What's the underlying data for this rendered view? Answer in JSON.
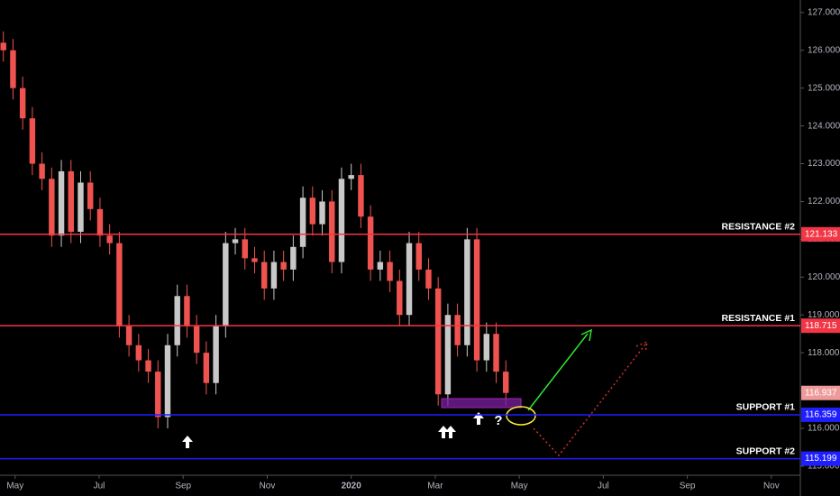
{
  "chart_data": {
    "type": "candlestick",
    "x": [
      -0.28,
      -0.05,
      0.18,
      0.41,
      0.64,
      0.87,
      1.1,
      1.33,
      1.56,
      1.79,
      2.02,
      2.25,
      2.48,
      2.71,
      2.94,
      3.17,
      3.4,
      3.63,
      3.86,
      4.09,
      4.32,
      4.55,
      4.78,
      5.01,
      5.24,
      5.47,
      5.7,
      5.93,
      6.16,
      6.39,
      6.62,
      6.85,
      7.08,
      7.31,
      7.54,
      7.77,
      8.0,
      8.23,
      8.46,
      8.69,
      8.92,
      9.15,
      9.38,
      9.61,
      9.84,
      10.07,
      10.3,
      10.53,
      10.76,
      10.99,
      11.22,
      11.45,
      11.68
    ],
    "candles": [
      [
        126.2,
        126.5,
        125.7,
        126.0
      ],
      [
        126.0,
        126.3,
        124.7,
        125.0
      ],
      [
        125.0,
        125.3,
        123.9,
        124.2
      ],
      [
        124.2,
        124.5,
        122.7,
        123.0
      ],
      [
        123.0,
        123.3,
        122.3,
        122.6
      ],
      [
        122.6,
        122.9,
        120.8,
        121.1
      ],
      [
        121.1,
        123.1,
        120.8,
        122.8
      ],
      [
        122.8,
        123.1,
        120.9,
        121.2
      ],
      [
        121.2,
        122.8,
        120.9,
        122.5
      ],
      [
        122.5,
        122.8,
        121.5,
        121.8
      ],
      [
        121.8,
        122.1,
        120.8,
        121.1
      ],
      [
        121.1,
        121.4,
        120.6,
        120.9
      ],
      [
        120.9,
        121.2,
        118.4,
        118.7
      ],
      [
        118.7,
        119.0,
        117.9,
        118.2
      ],
      [
        118.2,
        118.5,
        117.5,
        117.8
      ],
      [
        117.8,
        118.1,
        117.2,
        117.5
      ],
      [
        117.5,
        117.8,
        116.0,
        116.3
      ],
      [
        116.3,
        118.5,
        116.0,
        118.2
      ],
      [
        118.2,
        119.8,
        117.9,
        119.5
      ],
      [
        119.5,
        119.8,
        118.4,
        118.7
      ],
      [
        118.7,
        119.0,
        117.7,
        118.0
      ],
      [
        118.0,
        118.3,
        116.9,
        117.2
      ],
      [
        117.2,
        119.0,
        116.9,
        118.7
      ],
      [
        118.7,
        121.2,
        118.4,
        120.9
      ],
      [
        120.9,
        121.3,
        120.6,
        121.0
      ],
      [
        121.0,
        121.3,
        120.2,
        120.5
      ],
      [
        120.5,
        120.8,
        120.1,
        120.4
      ],
      [
        120.4,
        120.7,
        119.4,
        119.7
      ],
      [
        119.7,
        120.7,
        119.4,
        120.4
      ],
      [
        120.4,
        120.7,
        119.9,
        120.2
      ],
      [
        120.2,
        121.1,
        119.9,
        120.8
      ],
      [
        120.8,
        122.4,
        120.5,
        122.1
      ],
      [
        122.1,
        122.4,
        121.1,
        121.4
      ],
      [
        121.4,
        122.3,
        121.1,
        122.0
      ],
      [
        122.0,
        122.3,
        120.1,
        120.4
      ],
      [
        120.4,
        122.9,
        120.1,
        122.6
      ],
      [
        122.6,
        123.0,
        122.3,
        122.7
      ],
      [
        122.7,
        123.0,
        121.3,
        121.6
      ],
      [
        121.6,
        121.9,
        119.9,
        120.2
      ],
      [
        120.2,
        120.7,
        119.9,
        120.4
      ],
      [
        120.4,
        120.7,
        119.6,
        119.9
      ],
      [
        119.9,
        120.2,
        118.7,
        119.0
      ],
      [
        119.0,
        121.2,
        118.7,
        120.9
      ],
      [
        120.9,
        121.2,
        119.9,
        120.2
      ],
      [
        120.2,
        120.5,
        119.4,
        119.7
      ],
      [
        119.7,
        120.0,
        116.6,
        116.9
      ],
      [
        116.9,
        119.3,
        116.6,
        119.0
      ],
      [
        119.0,
        119.3,
        117.9,
        118.2
      ],
      [
        118.2,
        121.3,
        117.9,
        121.0
      ],
      [
        121.0,
        121.3,
        117.5,
        117.8
      ],
      [
        117.8,
        118.8,
        117.5,
        118.5
      ],
      [
        118.5,
        118.8,
        117.2,
        117.5
      ],
      [
        117.5,
        117.8,
        116.6,
        116.937
      ]
    ],
    "up_color": "#c8c8c8",
    "down_color": "#ef5350",
    "last_price_color": "#ef9a9a",
    "xlim": [
      -0.36,
      18.69
    ],
    "xticks": [
      {
        "value": 0,
        "label": "May"
      },
      {
        "value": 2,
        "label": "Jul"
      },
      {
        "value": 4,
        "label": "Sep"
      },
      {
        "value": 6,
        "label": "Nov"
      },
      {
        "value": 8,
        "label": "2020"
      },
      {
        "value": 10,
        "label": "Mar"
      },
      {
        "value": 12,
        "label": "May"
      },
      {
        "value": 14,
        "label": "Jul"
      },
      {
        "value": 16,
        "label": "Sep"
      },
      {
        "value": 18,
        "label": "Nov"
      }
    ],
    "ylim": [
      114.76,
      127.33
    ],
    "yticks": [
      {
        "value": 115,
        "label": "115.000"
      },
      {
        "value": 116,
        "label": "116.000"
      },
      {
        "value": 117,
        "label": "117.000"
      },
      {
        "value": 118,
        "label": "118.000"
      },
      {
        "value": 119,
        "label": "119.000"
      },
      {
        "value": 120,
        "label": "120.000"
      },
      {
        "value": 121,
        "label": "121.000"
      },
      {
        "value": 122,
        "label": "122.000"
      },
      {
        "value": 123,
        "label": "123.000"
      },
      {
        "value": 124,
        "label": "124.000"
      },
      {
        "value": 125,
        "label": "125.000"
      },
      {
        "value": 126,
        "label": "126.000"
      },
      {
        "value": 127,
        "label": "127.000"
      }
    ],
    "levels": [
      {
        "label": "RESISTANCE #2",
        "value": 121.133,
        "color": "#f23645"
      },
      {
        "label": "RESISTANCE #1",
        "value": 118.715,
        "color": "#f23645"
      },
      {
        "label": "SUPPORT #1",
        "value": 116.359,
        "color": "#1e1eff"
      },
      {
        "label": "SUPPORT #2",
        "value": 115.199,
        "color": "#1e1eff"
      }
    ],
    "annotation": "?"
  }
}
